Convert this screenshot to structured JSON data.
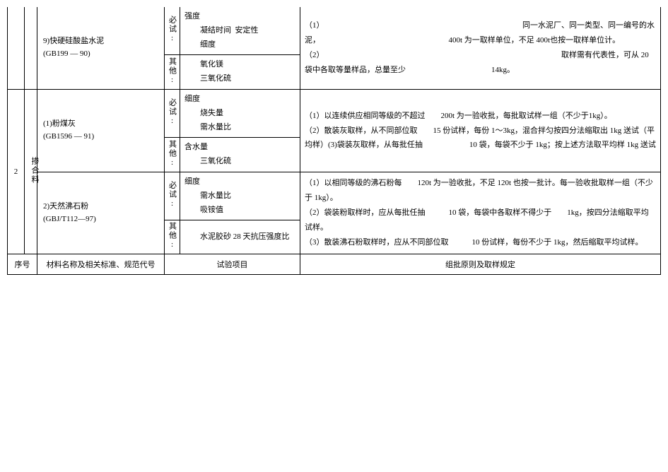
{
  "rows": [
    {
      "seq": "",
      "category": "",
      "material_name": "9)快硬硅酸盐水泥",
      "material_code": "(GB199 — 90)",
      "required_label": "必试:",
      "required_tests": "强度\n　　凝结时间  安定性\n　　细度",
      "other_label": "其他:",
      "other_tests": "氧化镁\n三氧化硫",
      "rules": "（1）　　　　　　　　　　　　　　　　　　　　　　　　　　同一水泥厂、同一类型、同一编号的水泥，　　　　　　　　　　　　　　　　　400t 为一取样单位，不足 400t也按一取样单位计。\n（2）　　　　　　　　　　　　　　　　　　　　　　　　　　　　　　　取样需有代表性，可从 20 袋中各取等量样品，总量至少　　　　　　　　　　　14kg。"
    },
    {
      "seq": "2",
      "category": "掺合料",
      "material_name": "(1)粉煤灰",
      "material_code": "(GB1596 — 91)",
      "required_label": "必试:",
      "required_tests": "细度\n　　烧失量\n　　需水量比",
      "other_label": "其他:",
      "other_tests": "含水量\n　　三氧化硫",
      "rules": "（1）以连续供应相同等级的不超过　　200t 为一验收批，每批取试样一组（不少于1kg）。\n（2）散装灰取样，从不同部位取　　15 份试样，每份 1～3kg，混合拌匀按四分法缩取出 1kg 送试（平均样）(3)袋装灰取样，从每批任抽　　　　　　10 袋，每袋不少于 1kg；按上述方法取平均样 1kg 送试"
    },
    {
      "seq": "",
      "category": "",
      "material_name": "2)天然沸石粉",
      "material_code": "(GBJ/T112—97)",
      "required_label": "必试:",
      "required_tests": "细度\n　　需水量比\n　　吸铵值",
      "other_label": "其他:",
      "other_tests": "水泥胶砂 28 天抗压强度比",
      "rules": "（1）以相同等级的沸石粉每　　120t 为一验收批，不足 120t 也按一批计。每一验收批取样一组（不少于 1kg）。\n（2）袋装粉取样时，应从每批任抽　　　10 袋，每袋中各取样不得少于　　1kg，按四分法缩取平均试样。\n（3）散装沸石粉取样时，应从不同部位取　　　10 份试样，每份不少于 1kg，然后缩取平均试样。"
    }
  ],
  "header": {
    "seq": "序号",
    "material": "材料名称及相关标准、规范代号",
    "test": "试验项目",
    "rules": "组批原则及取样规定"
  },
  "colors": {
    "border": "#000000",
    "background": "#ffffff",
    "text": "#000000"
  },
  "font": {
    "family": "SimSun",
    "size_pt": 9
  }
}
